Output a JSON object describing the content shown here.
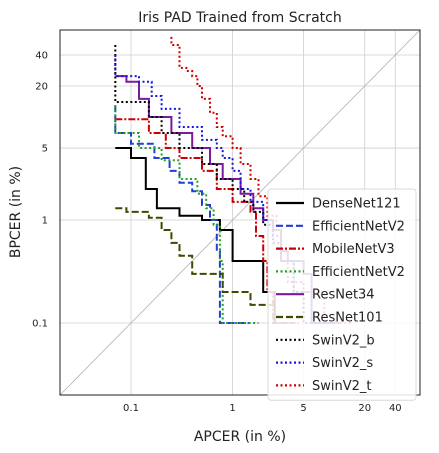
{
  "chart_data": {
    "type": "line",
    "title": "Iris PAD Trained from Scratch",
    "xlabel": "APCER (in %)",
    "ylabel": "BPCER (in %)",
    "xscale": "log",
    "yscale": "log",
    "xlim": [
      0.02,
      70
    ],
    "ylim": [
      0.02,
      70
    ],
    "xticks": [
      0.1,
      1,
      5,
      20,
      40
    ],
    "xtick_labels": [
      "0.1",
      "1",
      "5",
      "20",
      "40"
    ],
    "yticks": [
      0.1,
      1,
      5,
      20,
      40
    ],
    "ytick_labels": [
      "0.1",
      "1",
      "5",
      "20",
      "40"
    ],
    "grid": true,
    "diagonal": true,
    "legend_position": "lower-right",
    "series": [
      {
        "name": "DenseNet121",
        "color": "#000000",
        "dash": "solid",
        "points": [
          [
            0.07,
            5.0
          ],
          [
            0.1,
            5.0
          ],
          [
            0.1,
            4.0
          ],
          [
            0.14,
            4.0
          ],
          [
            0.14,
            2.0
          ],
          [
            0.18,
            2.0
          ],
          [
            0.18,
            1.3
          ],
          [
            0.3,
            1.3
          ],
          [
            0.3,
            1.1
          ],
          [
            0.5,
            1.1
          ],
          [
            0.5,
            1.0
          ],
          [
            0.75,
            1.0
          ],
          [
            0.75,
            0.8
          ],
          [
            1.0,
            0.8
          ],
          [
            1.0,
            0.4
          ],
          [
            2.0,
            0.4
          ],
          [
            2.0,
            0.2
          ],
          [
            2.6,
            0.2
          ],
          [
            2.6,
            0.1
          ],
          [
            3.5,
            0.1
          ]
        ]
      },
      {
        "name": "EfficientNetV2",
        "color": "#1f3fd6",
        "dash": "dashed",
        "points": [
          [
            0.07,
            13
          ],
          [
            0.07,
            7.0
          ],
          [
            0.1,
            7.0
          ],
          [
            0.1,
            5.5
          ],
          [
            0.17,
            5.5
          ],
          [
            0.17,
            4.0
          ],
          [
            0.24,
            4.0
          ],
          [
            0.24,
            3.0
          ],
          [
            0.3,
            3.0
          ],
          [
            0.3,
            2.3
          ],
          [
            0.4,
            2.3
          ],
          [
            0.4,
            1.9
          ],
          [
            0.5,
            1.9
          ],
          [
            0.5,
            1.4
          ],
          [
            0.6,
            1.4
          ],
          [
            0.6,
            1.0
          ],
          [
            0.7,
            1.0
          ],
          [
            0.7,
            0.5
          ],
          [
            0.75,
            0.5
          ],
          [
            0.75,
            0.1
          ],
          [
            1.5,
            0.1
          ]
        ]
      },
      {
        "name": "MobileNetV3",
        "color": "#cc0000",
        "dash": "dashdot",
        "points": [
          [
            0.07,
            9.5
          ],
          [
            0.15,
            9.5
          ],
          [
            0.15,
            7.0
          ],
          [
            0.22,
            7.0
          ],
          [
            0.22,
            5.0
          ],
          [
            0.3,
            5.0
          ],
          [
            0.3,
            4.0
          ],
          [
            0.5,
            4.0
          ],
          [
            0.5,
            3.0
          ],
          [
            0.7,
            3.0
          ],
          [
            0.7,
            2.0
          ],
          [
            1.0,
            2.0
          ],
          [
            1.0,
            1.5
          ],
          [
            1.5,
            1.5
          ],
          [
            1.5,
            1.2
          ],
          [
            1.7,
            1.2
          ],
          [
            1.7,
            0.7
          ],
          [
            2.0,
            0.7
          ],
          [
            2.0,
            0.4
          ],
          [
            2.2,
            0.4
          ],
          [
            2.2,
            0.2
          ],
          [
            2.5,
            0.2
          ],
          [
            2.5,
            0.1
          ],
          [
            4.5,
            0.1
          ]
        ]
      },
      {
        "name": "EfficientNetV2",
        "color": "#22a022",
        "dash": "dotted",
        "points": [
          [
            0.07,
            13
          ],
          [
            0.07,
            7.0
          ],
          [
            0.12,
            7.0
          ],
          [
            0.12,
            5.0
          ],
          [
            0.2,
            5.0
          ],
          [
            0.2,
            3.8
          ],
          [
            0.3,
            3.8
          ],
          [
            0.3,
            2.5
          ],
          [
            0.45,
            2.5
          ],
          [
            0.45,
            1.8
          ],
          [
            0.55,
            1.8
          ],
          [
            0.55,
            1.3
          ],
          [
            0.65,
            1.3
          ],
          [
            0.65,
            0.9
          ],
          [
            0.75,
            0.9
          ],
          [
            0.75,
            0.4
          ],
          [
            0.8,
            0.4
          ],
          [
            0.8,
            0.1
          ],
          [
            1.8,
            0.1
          ]
        ]
      },
      {
        "name": "ResNet34",
        "color": "#7a1a9e",
        "dash": "solid",
        "points": [
          [
            0.07,
            25
          ],
          [
            0.09,
            25
          ],
          [
            0.09,
            22
          ],
          [
            0.12,
            22
          ],
          [
            0.12,
            15
          ],
          [
            0.15,
            15
          ],
          [
            0.15,
            10
          ],
          [
            0.25,
            10
          ],
          [
            0.25,
            7.0
          ],
          [
            0.4,
            7.0
          ],
          [
            0.4,
            5.0
          ],
          [
            0.6,
            5.0
          ],
          [
            0.6,
            3.5
          ],
          [
            0.8,
            3.5
          ],
          [
            0.8,
            2.5
          ],
          [
            1.2,
            2.5
          ],
          [
            1.2,
            1.8
          ],
          [
            1.6,
            1.8
          ],
          [
            1.6,
            1.3
          ],
          [
            2.0,
            1.3
          ],
          [
            2.0,
            1.0
          ],
          [
            2.5,
            1.0
          ],
          [
            2.5,
            0.8
          ],
          [
            3.0,
            0.8
          ],
          [
            3.0,
            0.5
          ],
          [
            3.5,
            0.5
          ],
          [
            3.5,
            0.4
          ],
          [
            5.0,
            0.4
          ],
          [
            5.0,
            0.3
          ],
          [
            6.0,
            0.3
          ],
          [
            6.0,
            0.1
          ],
          [
            10,
            0.1
          ]
        ]
      },
      {
        "name": "ResNet101",
        "color": "#3d4a00",
        "dash": "dashed",
        "points": [
          [
            0.07,
            1.3
          ],
          [
            0.09,
            1.3
          ],
          [
            0.09,
            1.2
          ],
          [
            0.15,
            1.2
          ],
          [
            0.15,
            1.05
          ],
          [
            0.2,
            1.05
          ],
          [
            0.2,
            0.8
          ],
          [
            0.25,
            0.8
          ],
          [
            0.25,
            0.6
          ],
          [
            0.3,
            0.6
          ],
          [
            0.3,
            0.45
          ],
          [
            0.4,
            0.45
          ],
          [
            0.4,
            0.3
          ],
          [
            0.8,
            0.3
          ],
          [
            0.8,
            0.2
          ],
          [
            1.5,
            0.2
          ],
          [
            1.5,
            0.15
          ],
          [
            2.5,
            0.15
          ]
        ]
      },
      {
        "name": "SwinV2_b",
        "color": "#000000",
        "dash": "dotted",
        "points": [
          [
            0.07,
            50
          ],
          [
            0.07,
            14
          ],
          [
            0.15,
            14
          ],
          [
            0.15,
            10
          ],
          [
            0.2,
            10
          ],
          [
            0.2,
            7.0
          ],
          [
            0.3,
            7.0
          ],
          [
            0.3,
            5.0
          ],
          [
            0.5,
            5.0
          ],
          [
            0.5,
            3.5
          ],
          [
            0.7,
            3.5
          ],
          [
            0.7,
            2.5
          ],
          [
            1.0,
            2.5
          ],
          [
            1.0,
            2.0
          ],
          [
            1.3,
            2.0
          ],
          [
            1.3,
            1.5
          ],
          [
            1.6,
            1.5
          ],
          [
            1.6,
            1.2
          ],
          [
            2.0,
            1.2
          ],
          [
            2.0,
            0.9
          ],
          [
            2.5,
            0.9
          ],
          [
            2.5,
            0.6
          ],
          [
            3.0,
            0.6
          ],
          [
            3.0,
            0.4
          ],
          [
            4.0,
            0.4
          ],
          [
            4.0,
            0.2
          ],
          [
            5.0,
            0.2
          ],
          [
            5.0,
            0.1
          ],
          [
            10,
            0.1
          ]
        ]
      },
      {
        "name": "SwinV2_s",
        "color": "#1515e0",
        "dash": "dotted",
        "points": [
          [
            0.07,
            40
          ],
          [
            0.07,
            25
          ],
          [
            0.12,
            25
          ],
          [
            0.12,
            22
          ],
          [
            0.16,
            22
          ],
          [
            0.16,
            16
          ],
          [
            0.2,
            16
          ],
          [
            0.2,
            12
          ],
          [
            0.3,
            12
          ],
          [
            0.3,
            8.0
          ],
          [
            0.5,
            8.0
          ],
          [
            0.5,
            6.0
          ],
          [
            0.7,
            6.0
          ],
          [
            0.7,
            5.0
          ],
          [
            0.8,
            5.0
          ],
          [
            0.8,
            4.0
          ],
          [
            1.0,
            4.0
          ],
          [
            1.0,
            3.0
          ],
          [
            1.2,
            3.0
          ],
          [
            1.2,
            2.0
          ],
          [
            1.5,
            2.0
          ],
          [
            1.5,
            1.5
          ],
          [
            2.0,
            1.5
          ],
          [
            2.0,
            1.0
          ],
          [
            2.5,
            1.0
          ],
          [
            2.5,
            0.7
          ],
          [
            3.0,
            0.7
          ],
          [
            3.0,
            0.4
          ],
          [
            4.0,
            0.4
          ],
          [
            4.0,
            0.2
          ],
          [
            6.0,
            0.2
          ],
          [
            6.0,
            0.1
          ],
          [
            12,
            0.1
          ]
        ]
      },
      {
        "name": "SwinV2_t",
        "color": "#cc0000",
        "dash": "dotted",
        "points": [
          [
            0.25,
            60
          ],
          [
            0.25,
            50
          ],
          [
            0.3,
            50
          ],
          [
            0.3,
            30
          ],
          [
            0.35,
            30
          ],
          [
            0.35,
            28
          ],
          [
            0.4,
            28
          ],
          [
            0.4,
            25
          ],
          [
            0.45,
            25
          ],
          [
            0.45,
            20
          ],
          [
            0.5,
            20
          ],
          [
            0.5,
            15
          ],
          [
            0.6,
            15
          ],
          [
            0.6,
            11
          ],
          [
            0.7,
            11
          ],
          [
            0.7,
            8.0
          ],
          [
            0.8,
            8.0
          ],
          [
            0.8,
            6.5
          ],
          [
            1.0,
            6.5
          ],
          [
            1.0,
            5.0
          ],
          [
            1.2,
            5.0
          ],
          [
            1.2,
            3.5
          ],
          [
            1.5,
            3.5
          ],
          [
            1.5,
            2.5
          ],
          [
            1.8,
            2.5
          ],
          [
            1.8,
            1.7
          ],
          [
            2.2,
            1.7
          ],
          [
            2.2,
            1.1
          ],
          [
            2.7,
            1.1
          ],
          [
            2.7,
            0.8
          ],
          [
            3.0,
            0.8
          ],
          [
            3.0,
            0.4
          ],
          [
            3.5,
            0.4
          ],
          [
            3.5,
            0.25
          ],
          [
            5.0,
            0.25
          ],
          [
            5.0,
            0.2
          ],
          [
            8.0,
            0.2
          ],
          [
            8.0,
            0.1
          ],
          [
            15,
            0.1
          ]
        ]
      }
    ]
  }
}
